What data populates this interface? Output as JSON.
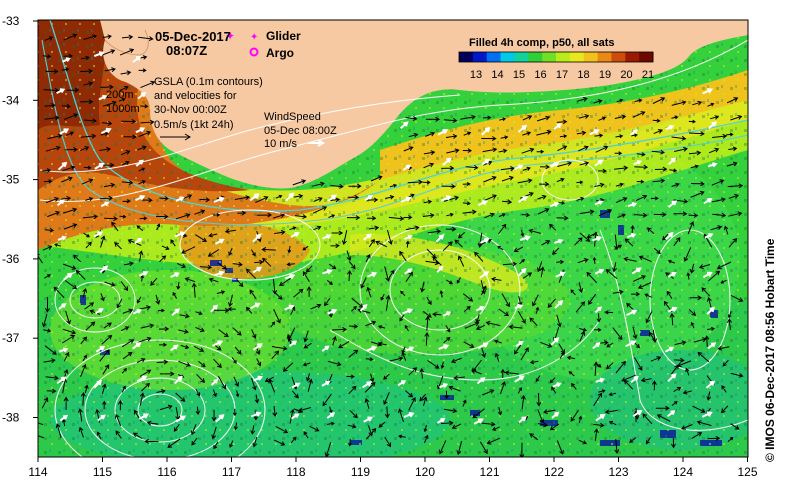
{
  "map": {
    "x_ticks": [
      "114",
      "115",
      "116",
      "117",
      "118",
      "119",
      "120",
      "121",
      "122",
      "123",
      "124",
      "125"
    ],
    "y_ticks": [
      "-33",
      "-34",
      "-35",
      "-36",
      "-37",
      "-38"
    ],
    "colors": {
      "land": "#f6c9a3",
      "contour": "#ffffff",
      "isobath": "#4fd2d6",
      "glider": "#ff00ff",
      "argo": "#ff00ff"
    }
  },
  "title": {
    "date": "05-Dec-2017",
    "time": "08:07Z"
  },
  "legend": {
    "glider": "Glider",
    "argo": "Argo"
  },
  "gsla": {
    "lines": [
      "GSLA (0.1m contours)",
      "and velocities for",
      "30-Nov 00:00Z",
      "0.5m/s (1kt 24h)"
    ]
  },
  "isobaths": {
    "shallow": "200m",
    "deep": "1000m"
  },
  "wind": {
    "lines": [
      "WindSpeed",
      "05-Dec 08:00Z",
      "10 m/s"
    ]
  },
  "colorbar": {
    "title": "Filled 4h comp, p50, all sats",
    "ticks": [
      "13",
      "14",
      "15",
      "16",
      "17",
      "18",
      "19",
      "20",
      "21"
    ],
    "palette": [
      "#00005c",
      "#0019c8",
      "#0070f0",
      "#00c8e6",
      "#10d29a",
      "#2fcf3a",
      "#72df22",
      "#b8ec1a",
      "#e8e81c",
      "#f2c21c",
      "#ea8a14",
      "#cd4d0a",
      "#9c1a02",
      "#6d0a00"
    ]
  },
  "credit": "© IMOS 06-Dec-2017 08:56 Hobart Time"
}
